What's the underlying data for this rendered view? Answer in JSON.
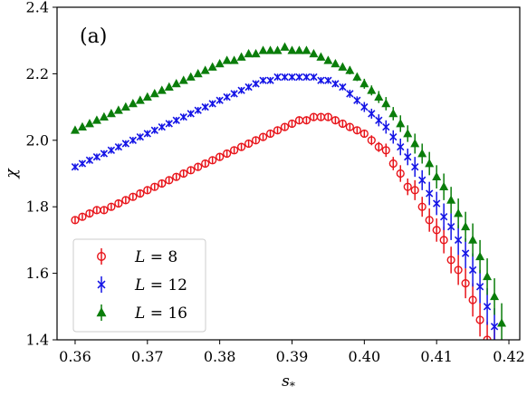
{
  "chart_data": {
    "type": "scatter",
    "panel_label": "(a)",
    "xlabel": "s",
    "xlabel_sub": "*",
    "ylabel": "χ",
    "xlim": [
      0.3575,
      0.4215
    ],
    "ylim": [
      1.4,
      2.4
    ],
    "xticks": [
      0.36,
      0.37,
      0.38,
      0.39,
      0.4,
      0.41,
      0.42
    ],
    "xtick_labels": [
      "0.36",
      "0.37",
      "0.38",
      "0.39",
      "0.40",
      "0.41",
      "0.42"
    ],
    "yticks": [
      1.4,
      1.6,
      1.8,
      2.0,
      2.2,
      2.4
    ],
    "ytick_labels": [
      "1.4",
      "1.6",
      "1.8",
      "2.0",
      "2.2",
      "2.4"
    ],
    "legend": {
      "position": "lower-left",
      "entries": [
        {
          "italic": "L",
          "rest": " = 8"
        },
        {
          "italic": "L",
          "rest": " = 12"
        },
        {
          "italic": "L",
          "rest": " = 16"
        }
      ]
    },
    "series": [
      {
        "marker": "circle",
        "color": "#e8141a",
        "x": [
          0.36,
          0.361,
          0.362,
          0.363,
          0.364,
          0.365,
          0.366,
          0.367,
          0.368,
          0.369,
          0.37,
          0.371,
          0.372,
          0.373,
          0.374,
          0.375,
          0.376,
          0.377,
          0.378,
          0.379,
          0.38,
          0.381,
          0.382,
          0.383,
          0.384,
          0.385,
          0.386,
          0.387,
          0.388,
          0.389,
          0.39,
          0.391,
          0.392,
          0.393,
          0.394,
          0.395,
          0.396,
          0.397,
          0.398,
          0.399,
          0.4,
          0.401,
          0.402,
          0.403,
          0.404,
          0.405,
          0.406,
          0.407,
          0.408,
          0.409,
          0.41,
          0.411,
          0.412,
          0.413,
          0.414,
          0.415,
          0.416,
          0.417,
          0.418
        ],
        "y": [
          1.76,
          1.77,
          1.78,
          1.79,
          1.79,
          1.8,
          1.81,
          1.82,
          1.83,
          1.84,
          1.85,
          1.86,
          1.87,
          1.88,
          1.89,
          1.9,
          1.91,
          1.92,
          1.93,
          1.94,
          1.95,
          1.96,
          1.97,
          1.98,
          1.99,
          2.0,
          2.01,
          2.02,
          2.03,
          2.04,
          2.05,
          2.06,
          2.06,
          2.07,
          2.07,
          2.07,
          2.06,
          2.05,
          2.04,
          2.03,
          2.02,
          2.0,
          1.98,
          1.97,
          1.93,
          1.9,
          1.86,
          1.85,
          1.8,
          1.76,
          1.73,
          1.7,
          1.64,
          1.61,
          1.57,
          1.52,
          1.46,
          1.4,
          1.38
        ],
        "err": [
          0.01,
          0.01,
          0.01,
          0.01,
          0.01,
          0.01,
          0.01,
          0.01,
          0.01,
          0.01,
          0.01,
          0.01,
          0.01,
          0.01,
          0.01,
          0.01,
          0.01,
          0.01,
          0.01,
          0.01,
          0.01,
          0.01,
          0.01,
          0.01,
          0.01,
          0.01,
          0.01,
          0.01,
          0.01,
          0.01,
          0.01,
          0.01,
          0.01,
          0.01,
          0.01,
          0.01,
          0.01,
          0.01,
          0.01,
          0.01,
          0.01,
          0.015,
          0.015,
          0.02,
          0.02,
          0.025,
          0.025,
          0.03,
          0.03,
          0.035,
          0.035,
          0.04,
          0.04,
          0.045,
          0.045,
          0.05,
          0.05,
          0.055,
          0.055
        ]
      },
      {
        "marker": "x",
        "color": "#1414e6",
        "x": [
          0.36,
          0.361,
          0.362,
          0.363,
          0.364,
          0.365,
          0.366,
          0.367,
          0.368,
          0.369,
          0.37,
          0.371,
          0.372,
          0.373,
          0.374,
          0.375,
          0.376,
          0.377,
          0.378,
          0.379,
          0.38,
          0.381,
          0.382,
          0.383,
          0.384,
          0.385,
          0.386,
          0.387,
          0.388,
          0.389,
          0.39,
          0.391,
          0.392,
          0.393,
          0.394,
          0.395,
          0.396,
          0.397,
          0.398,
          0.399,
          0.4,
          0.401,
          0.402,
          0.403,
          0.404,
          0.405,
          0.406,
          0.407,
          0.408,
          0.409,
          0.41,
          0.411,
          0.412,
          0.413,
          0.414,
          0.415,
          0.416,
          0.417,
          0.418
        ],
        "y": [
          1.92,
          1.93,
          1.94,
          1.95,
          1.96,
          1.97,
          1.98,
          1.99,
          2.0,
          2.01,
          2.02,
          2.03,
          2.04,
          2.05,
          2.06,
          2.07,
          2.08,
          2.09,
          2.1,
          2.11,
          2.12,
          2.13,
          2.14,
          2.15,
          2.16,
          2.17,
          2.18,
          2.18,
          2.19,
          2.19,
          2.19,
          2.19,
          2.19,
          2.19,
          2.18,
          2.18,
          2.17,
          2.16,
          2.14,
          2.12,
          2.1,
          2.08,
          2.06,
          2.04,
          2.01,
          1.98,
          1.95,
          1.92,
          1.88,
          1.84,
          1.81,
          1.77,
          1.74,
          1.7,
          1.66,
          1.61,
          1.56,
          1.5,
          1.44
        ],
        "err": [
          0.01,
          0.01,
          0.01,
          0.01,
          0.01,
          0.01,
          0.01,
          0.01,
          0.01,
          0.01,
          0.01,
          0.01,
          0.01,
          0.01,
          0.01,
          0.01,
          0.01,
          0.01,
          0.01,
          0.01,
          0.01,
          0.01,
          0.01,
          0.01,
          0.01,
          0.01,
          0.01,
          0.01,
          0.01,
          0.01,
          0.01,
          0.01,
          0.01,
          0.01,
          0.01,
          0.01,
          0.01,
          0.01,
          0.012,
          0.012,
          0.015,
          0.015,
          0.018,
          0.02,
          0.02,
          0.025,
          0.025,
          0.03,
          0.03,
          0.035,
          0.035,
          0.04,
          0.04,
          0.045,
          0.045,
          0.05,
          0.05,
          0.055,
          0.055
        ]
      },
      {
        "marker": "triangle",
        "color": "#0a7d0a",
        "x": [
          0.36,
          0.361,
          0.362,
          0.363,
          0.364,
          0.365,
          0.366,
          0.367,
          0.368,
          0.369,
          0.37,
          0.371,
          0.372,
          0.373,
          0.374,
          0.375,
          0.376,
          0.377,
          0.378,
          0.379,
          0.38,
          0.381,
          0.382,
          0.383,
          0.384,
          0.385,
          0.386,
          0.387,
          0.388,
          0.389,
          0.39,
          0.391,
          0.392,
          0.393,
          0.394,
          0.395,
          0.396,
          0.397,
          0.398,
          0.399,
          0.4,
          0.401,
          0.402,
          0.403,
          0.404,
          0.405,
          0.406,
          0.407,
          0.408,
          0.409,
          0.41,
          0.411,
          0.412,
          0.413,
          0.414,
          0.415,
          0.416,
          0.417,
          0.418,
          0.419
        ],
        "y": [
          2.03,
          2.04,
          2.05,
          2.06,
          2.07,
          2.08,
          2.09,
          2.1,
          2.11,
          2.12,
          2.13,
          2.14,
          2.15,
          2.16,
          2.17,
          2.18,
          2.19,
          2.2,
          2.21,
          2.22,
          2.23,
          2.24,
          2.24,
          2.25,
          2.26,
          2.26,
          2.27,
          2.27,
          2.27,
          2.28,
          2.27,
          2.27,
          2.27,
          2.26,
          2.25,
          2.24,
          2.23,
          2.22,
          2.21,
          2.19,
          2.17,
          2.15,
          2.13,
          2.11,
          2.08,
          2.05,
          2.02,
          1.99,
          1.96,
          1.93,
          1.89,
          1.86,
          1.82,
          1.78,
          1.74,
          1.7,
          1.65,
          1.59,
          1.53,
          1.45
        ],
        "err": [
          0.01,
          0.01,
          0.01,
          0.01,
          0.01,
          0.01,
          0.01,
          0.01,
          0.01,
          0.01,
          0.01,
          0.01,
          0.01,
          0.01,
          0.01,
          0.01,
          0.01,
          0.01,
          0.01,
          0.01,
          0.01,
          0.01,
          0.01,
          0.01,
          0.01,
          0.01,
          0.01,
          0.01,
          0.01,
          0.01,
          0.01,
          0.01,
          0.01,
          0.01,
          0.01,
          0.01,
          0.01,
          0.01,
          0.012,
          0.012,
          0.015,
          0.015,
          0.018,
          0.02,
          0.02,
          0.025,
          0.025,
          0.03,
          0.03,
          0.035,
          0.035,
          0.04,
          0.04,
          0.045,
          0.045,
          0.05,
          0.05,
          0.055,
          0.055,
          0.06
        ]
      }
    ]
  }
}
